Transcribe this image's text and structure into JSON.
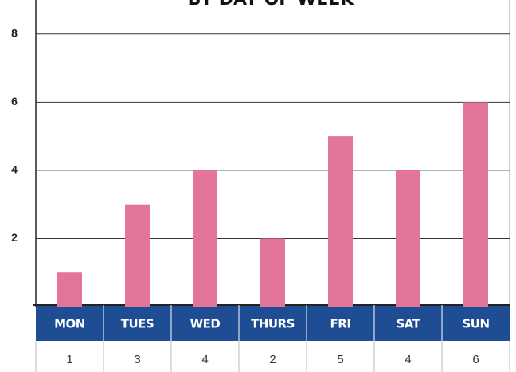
{
  "chart_data": {
    "type": "bar",
    "title": "BY DAY OF WEEK",
    "categories": [
      "MON",
      "TUES",
      "WED",
      "THURS",
      "FRI",
      "SAT",
      "SUN"
    ],
    "values": [
      1,
      3,
      4,
      2,
      5,
      4,
      6
    ],
    "color": "#e37599",
    "header_color": "#1f4d94",
    "ylim": [
      0,
      9
    ],
    "yticks": [
      2,
      4,
      6,
      8
    ],
    "grid": true
  }
}
